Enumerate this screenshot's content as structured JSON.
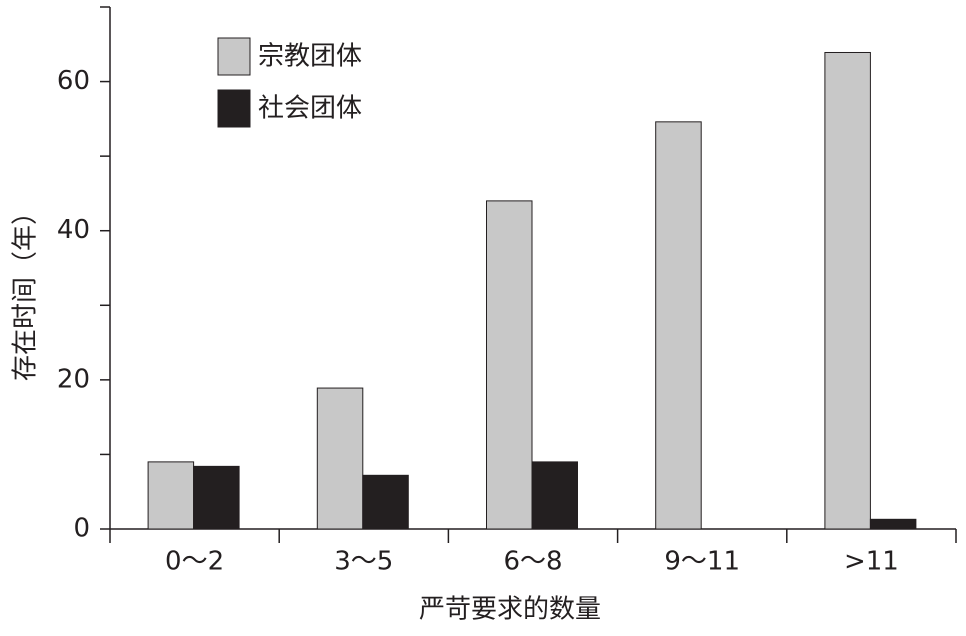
{
  "chart_data": {
    "type": "bar",
    "categories": [
      "0～2",
      "3～5",
      "6～8",
      "9～11",
      ">11"
    ],
    "series": [
      {
        "name": "宗教团体",
        "color": "#c8c8c8",
        "values": [
          9,
          18.9,
          44,
          54.6,
          63.9
        ]
      },
      {
        "name": "社会团体",
        "color": "#231f20",
        "values": [
          8.4,
          7.2,
          9,
          0,
          1.3
        ]
      }
    ],
    "ylabel": "存在时间（年）",
    "xlabel": "严苛要求的数量",
    "ylim": [
      0,
      70
    ],
    "yticks": [
      0,
      20,
      40,
      60
    ],
    "minor_yticks": [
      10,
      30,
      50,
      70
    ],
    "legend": "upper-left"
  }
}
